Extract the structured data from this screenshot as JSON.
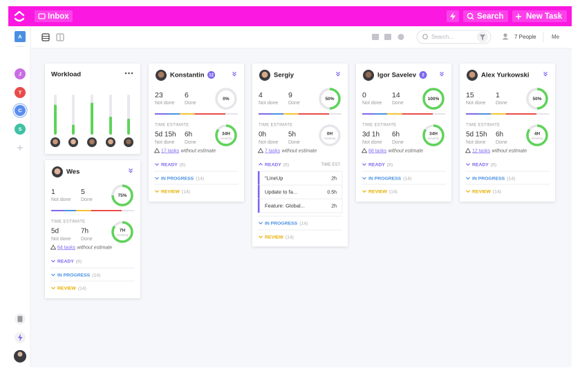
{
  "header": {
    "inbox": "Inbox",
    "search": "Search",
    "new_task": "New Task"
  },
  "sidebar": {
    "spaces": [
      "A",
      "J",
      "T",
      "C",
      "S"
    ]
  },
  "toolbar": {
    "search_placeholder": "Search...",
    "people": "7 People",
    "me": "Me"
  },
  "workload": {
    "title": "Workload",
    "values": [
      75,
      25,
      80,
      45,
      40
    ]
  },
  "people": [
    {
      "name": "Konstantin",
      "badge": "12",
      "not_done": 23,
      "done": 6,
      "not_done_label": "Not done",
      "done_label": "Done",
      "progress": {
        "value": 0,
        "label": "0%"
      },
      "time_estimate_label": "TIME ESTIMATE",
      "estimate": {
        "not_done": "5d 15h",
        "done": "6h",
        "not_done_label": "Not done",
        "done_label": "Done"
      },
      "remaining": {
        "value": 85,
        "label": "34H",
        "caption": "remaining"
      },
      "tasks_link": "17 tasks",
      "tasks_note": "without estimate",
      "statuses": [
        {
          "label": "READY",
          "count": "(8)",
          "color": "#7b68ee"
        },
        {
          "label": "IN PROGRESS",
          "count": "(14)",
          "color": "#4a90e2"
        },
        {
          "label": "REVIEW",
          "count": "(14)",
          "color": "#e5b000"
        }
      ]
    },
    {
      "name": "Sergiy",
      "not_done": 4,
      "done": 9,
      "not_done_label": "Not done",
      "done_label": "Done",
      "progress": {
        "value": 50,
        "label": "50%"
      },
      "time_estimate_label": "TIME ESTIMATE",
      "estimate": {
        "not_done": "0h",
        "done": "5h",
        "not_done_label": "Not done",
        "done_label": "Done"
      },
      "remaining": {
        "value": 0,
        "label": "0H",
        "caption": "remaining"
      },
      "tasks_link": "7 tasks",
      "tasks_note": "without estimate",
      "statuses": [
        {
          "label": "READY",
          "count": "(8)",
          "color": "#7b68ee"
        },
        {
          "label": "IN PROGRESS",
          "count": "(14)",
          "color": "#4a90e2"
        },
        {
          "label": "REVIEW",
          "count": "(14)",
          "color": "#e5b000"
        }
      ],
      "time_est_label": "TIME EST.",
      "tasks": [
        {
          "name": "\"LineUp",
          "time": "2h"
        },
        {
          "name": "Update to fa...",
          "time": "0.5h"
        },
        {
          "name": "Feature: Global...",
          "time": "2h"
        }
      ]
    },
    {
      "name": "Igor Savelev",
      "badge": "2",
      "not_done": 0,
      "done": 14,
      "not_done_label": "Not done",
      "done_label": "Done",
      "progress": {
        "value": 100,
        "label": "100%"
      },
      "time_estimate_label": "TIME ESTIMATE",
      "estimate": {
        "not_done": "3d 1h",
        "done": "6h",
        "not_done_label": "Not done",
        "done_label": "Done"
      },
      "remaining": {
        "value": 85,
        "label": "34H",
        "caption": "remaining"
      },
      "tasks_link": "68 tasks",
      "tasks_note": "without estimate",
      "statuses": [
        {
          "label": "READY",
          "count": "(8)",
          "color": "#7b68ee"
        },
        {
          "label": "IN PROGRESS",
          "count": "(14)",
          "color": "#4a90e2"
        },
        {
          "label": "REVIEW",
          "count": "(14)",
          "color": "#e5b000"
        }
      ]
    },
    {
      "name": "Alex Yurkowski",
      "not_done": 15,
      "done": 1,
      "not_done_label": "Not done",
      "done_label": "Done",
      "progress": {
        "value": 50,
        "label": "50%"
      },
      "time_estimate_label": "TIME ESTIMATE",
      "estimate": {
        "not_done": "5d 15h",
        "done": "6h",
        "not_done_label": "Not done",
        "done_label": "Done"
      },
      "remaining": {
        "value": 85,
        "label": "4H",
        "caption": "remaining"
      },
      "tasks_link": "12 tasks",
      "tasks_note": "without estimate",
      "statuses": [
        {
          "label": "READY",
          "count": "(8)",
          "color": "#7b68ee"
        },
        {
          "label": "IN PROGRESS",
          "count": "(14)",
          "color": "#4a90e2"
        },
        {
          "label": "REVIEW",
          "count": "(14)",
          "color": "#e5b000"
        }
      ]
    },
    {
      "name": "Wes",
      "not_done": 1,
      "done": 5,
      "not_done_label": "Not done",
      "done_label": "Done",
      "progress": {
        "value": 75,
        "label": "75%"
      },
      "time_estimate_label": "TIME ESTIMATE",
      "estimate": {
        "not_done": "5d",
        "done": "7h",
        "not_done_label": "Not done",
        "done_label": "Done"
      },
      "remaining": {
        "value": 85,
        "label": "7H",
        "caption": "remaining"
      },
      "tasks_link": "64 tasks",
      "tasks_note": "without estimate",
      "statuses": [
        {
          "label": "READY",
          "count": "(8)",
          "color": "#7b68ee"
        },
        {
          "label": "IN PROGRESS",
          "count": "(14)",
          "color": "#4a90e2"
        },
        {
          "label": "REVIEW",
          "count": "(14)",
          "color": "#e5b000"
        }
      ]
    }
  ]
}
